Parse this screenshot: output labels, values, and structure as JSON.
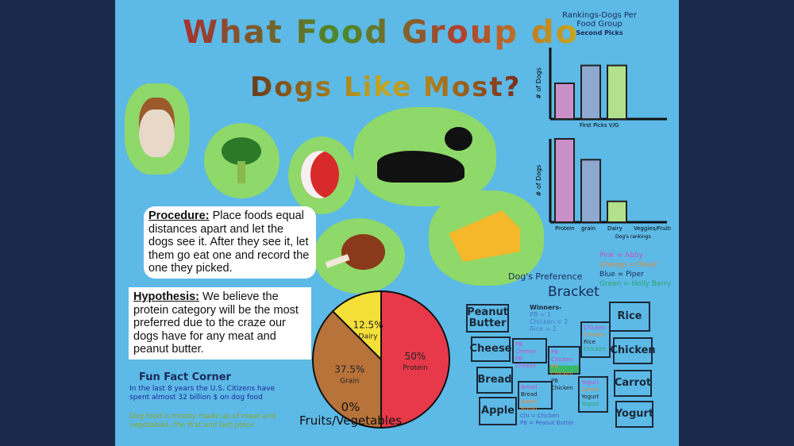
{
  "title_line1": "What Food Group do",
  "title_line2": "Dogs Like Most?",
  "procedure": {
    "label": "Procedure:",
    "text": " Place foods equal distances apart and let the dogs see it. After they see it, let them go eat one and record the one they picked."
  },
  "hypothesis": {
    "label": "Hypothesis:",
    "text": " We believe the protein category will be the most preferred due to the craze our dogs have for any meat and peanut butter."
  },
  "fun_fact": {
    "title": "Fun Fact Corner",
    "line1": "In the last 8 years the U.S. Citizens have spent almost 32 billion $ on dog food",
    "line2": "Dog food is mostly made up of meat and vegetables, the first and last place"
  },
  "chart_data": [
    {
      "type": "pie",
      "slices": [
        {
          "label": "Protein",
          "value": 50,
          "text": "50%",
          "color": "#e8394a"
        },
        {
          "label": "Grain",
          "value": 37.5,
          "text": "37.5%",
          "color": "#b8733a"
        },
        {
          "label": "Dairy",
          "value": 12.5,
          "text": "12.5%",
          "color": "#f5e03a"
        },
        {
          "label": "Fruits/Vegetables",
          "value": 0,
          "text": "0%"
        }
      ]
    },
    {
      "type": "bar",
      "title": "Rankings-Dogs Per Food Group",
      "subtitle": "Second Picks",
      "ylabel": "# of Dogs",
      "categories": [
        "Protein",
        "Grain",
        "Dairy"
      ],
      "values": [
        2,
        3,
        3
      ],
      "colors": [
        "#c88fc8",
        "#8fa8cf",
        "#b3e08a"
      ],
      "ylim": [
        0,
        4
      ]
    },
    {
      "type": "bar",
      "title": "First Picks",
      "xlabel": "First Picks V/G",
      "ylabel": "# of Dogs",
      "categories": [
        "Protein",
        "grain",
        "Dairy",
        "Veggies/Fruits"
      ],
      "values": [
        4,
        3,
        1,
        0
      ],
      "colors": [
        "#c88fc8",
        "#8fa8cf",
        "#b3e08a",
        "#5db9e6"
      ],
      "ylim": [
        0,
        4
      ],
      "note": "Dog's rankings"
    }
  ],
  "legend": [
    {
      "text": "Pink = Abby",
      "color": "#c84fc8"
    },
    {
      "text": "Orange = Oliver",
      "color": "#e88a3a"
    },
    {
      "text": "Blue = Piper",
      "color": "#1a2a5a"
    },
    {
      "text": "Green = Holly Berry",
      "color": "#2aa86a"
    }
  ],
  "bracket": {
    "title1": "Dog's Preference",
    "title2": "Bracket",
    "winners": [
      "Winners-",
      "PB = 1",
      "Chicken = 2",
      "Rice = 2"
    ],
    "left": [
      "Peanut Butter",
      "Cheese",
      "Bread",
      "Apple"
    ],
    "right": [
      "Rice",
      "Chicken",
      "Carrot",
      "Yogurt"
    ],
    "r1_left_top": [
      "PB Cheese",
      "PB Cheese"
    ],
    "r1_left_bottom": [
      "Bread",
      "Bread",
      "Apple Bread"
    ],
    "r1_right_top": [
      "Chicken",
      "Chicken",
      "Rice",
      "Chicken"
    ],
    "r1_right_bottom": [
      "Yogurt",
      "Carrot",
      "Yogurt",
      "Yogurt"
    ],
    "final": [
      "PB Chicken",
      "PB Chicken",
      "PB Chicken"
    ],
    "key": [
      "Chi = Chicken",
      "PB = Peanut Butter"
    ]
  }
}
